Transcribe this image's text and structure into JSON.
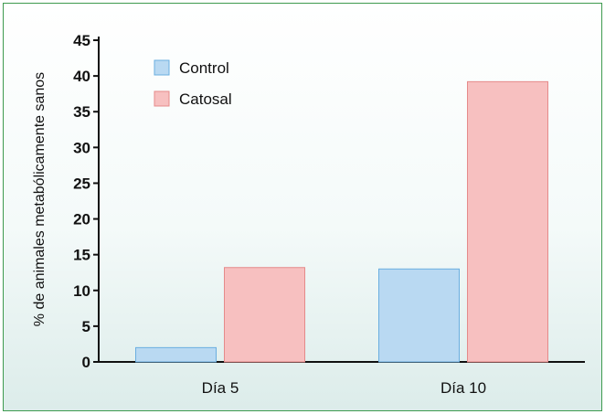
{
  "chart_data": {
    "type": "bar",
    "title": "",
    "xlabel": "",
    "ylabel": "% de animales metabólicamente sanos",
    "categories": [
      "Día 5",
      "Día 10"
    ],
    "series": [
      {
        "name": "Control",
        "values": [
          2,
          13
        ],
        "color": "#b9d9f2",
        "stroke": "#6aaee0"
      },
      {
        "name": "Catosal",
        "values": [
          13.2,
          39.2
        ],
        "color": "#f7c0c0",
        "stroke": "#e58a8a"
      }
    ],
    "ylim": [
      0,
      45
    ],
    "yticks": [
      "0",
      "5",
      "10",
      "15",
      "20",
      "25",
      "30",
      "35",
      "40",
      "45"
    ],
    "grid": false,
    "legend_position": "top-left"
  },
  "colors": {
    "frame_border": "#3e9a4f",
    "axis": "#111111"
  }
}
